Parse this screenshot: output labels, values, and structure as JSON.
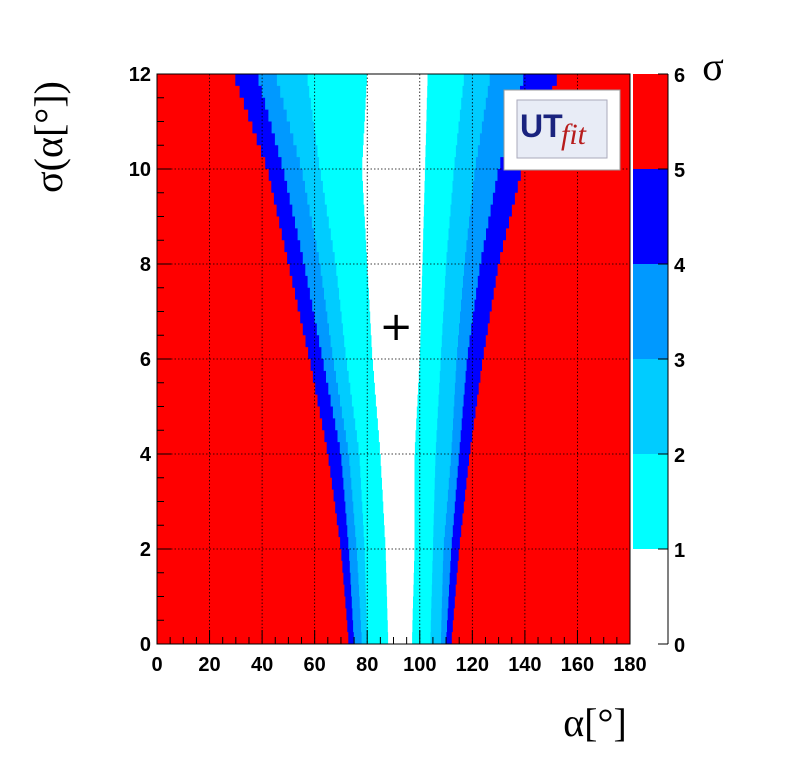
{
  "chart_data": {
    "type": "heatmap",
    "title": "",
    "xlabel": "α[°]",
    "ylabel": "σ(α[°])",
    "xlim": [
      0,
      180
    ],
    "ylim": [
      0,
      12
    ],
    "x_ticks": [
      0,
      20,
      40,
      60,
      80,
      100,
      120,
      140,
      160,
      180
    ],
    "y_ticks": [
      0,
      2,
      4,
      6,
      8,
      10,
      12
    ],
    "grid": true,
    "colorbar": {
      "title": "σ",
      "ticks": [
        0,
        1,
        2,
        3,
        4,
        5,
        6
      ],
      "levels": [
        {
          "range": [
            0,
            1
          ],
          "color": "#ffffff"
        },
        {
          "range": [
            1,
            2
          ],
          "color": "#00ffff"
        },
        {
          "range": [
            2,
            3
          ],
          "color": "#00ccff"
        },
        {
          "range": [
            3,
            4
          ],
          "color": "#0099ff"
        },
        {
          "range": [
            4,
            5
          ],
          "color": "#0000ff"
        },
        {
          "range": [
            5,
            6
          ],
          "color": "#ff0000"
        }
      ]
    },
    "contours_vs_sigma_alpha": {
      "sigma_alpha": [
        0,
        2,
        4,
        6,
        8,
        10,
        12
      ],
      "left_level_5": [
        73,
        70,
        65,
        58,
        50,
        42,
        29
      ],
      "left_level_4": [
        75,
        73,
        70,
        63,
        56,
        48,
        38
      ],
      "left_level_3": [
        78,
        76,
        73,
        67,
        62,
        55,
        45
      ],
      "left_level_2": [
        80,
        79,
        77,
        72,
        68,
        62,
        57
      ],
      "left_level_1": [
        88,
        87,
        85,
        82,
        80,
        78,
        80
      ],
      "right_level_1": [
        97,
        98,
        98,
        100,
        101,
        102,
        103
      ],
      "right_level_2": [
        104,
        105,
        106,
        108,
        110,
        113,
        117
      ],
      "right_level_3": [
        108,
        109,
        112,
        114,
        117,
        121,
        127
      ],
      "right_level_4": [
        110,
        112,
        115,
        118,
        123,
        130,
        140
      ],
      "right_level_5": [
        112,
        115,
        119,
        124,
        130,
        139,
        153
      ]
    },
    "marker": {
      "x": 91,
      "y": 6.7,
      "symbol": "+"
    }
  },
  "logo": {
    "text_main": "UT",
    "text_sub": "fit"
  },
  "colors": {
    "red": "#ff0000",
    "blue": "#0000ff",
    "mid_blue": "#0099ff",
    "light_blue": "#00ccff",
    "cyan": "#00ffff",
    "white": "#ffffff"
  }
}
